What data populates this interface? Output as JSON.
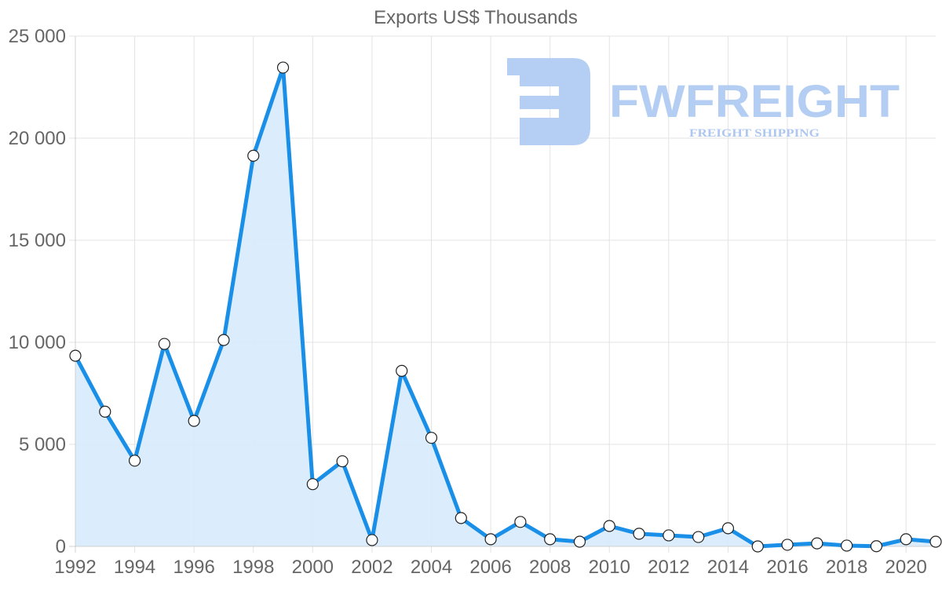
{
  "chart_data": {
    "type": "area",
    "title": "Exports US$ Thousands",
    "xlabel": "",
    "ylabel": "",
    "x": [
      1992,
      1993,
      1994,
      1995,
      1996,
      1997,
      1998,
      1999,
      2000,
      2001,
      2002,
      2003,
      2004,
      2005,
      2006,
      2007,
      2008,
      2009,
      2010,
      2011,
      2012,
      2013,
      2014,
      2015,
      2016,
      2017,
      2018,
      2019,
      2020,
      2021
    ],
    "series": [
      {
        "name": "Exports US$ Thousands",
        "values": [
          9340,
          6600,
          4200,
          9920,
          6150,
          10110,
          19140,
          23460,
          3050,
          4170,
          310,
          8600,
          5320,
          1390,
          350,
          1200,
          350,
          230,
          1000,
          620,
          540,
          460,
          890,
          0,
          80,
          150,
          40,
          10,
          350,
          230
        ],
        "color": "#1a8fe8",
        "fill": "#d7ebfc"
      }
    ],
    "ylim": [
      0,
      25000
    ],
    "yticks": [
      0,
      5000,
      10000,
      15000,
      20000,
      25000
    ],
    "ytick_labels": [
      "0",
      "5 000",
      "10 000",
      "15 000",
      "20 000",
      "25 000"
    ],
    "xticks": [
      1992,
      1994,
      1996,
      1998,
      2000,
      2002,
      2004,
      2006,
      2008,
      2010,
      2012,
      2014,
      2016,
      2018,
      2020
    ],
    "grid": true,
    "legend": "none"
  },
  "watermark": {
    "brand": "FWFREIGHT",
    "tagline": "FREIGHT SHIPPING",
    "color": "#a9c6f2"
  }
}
